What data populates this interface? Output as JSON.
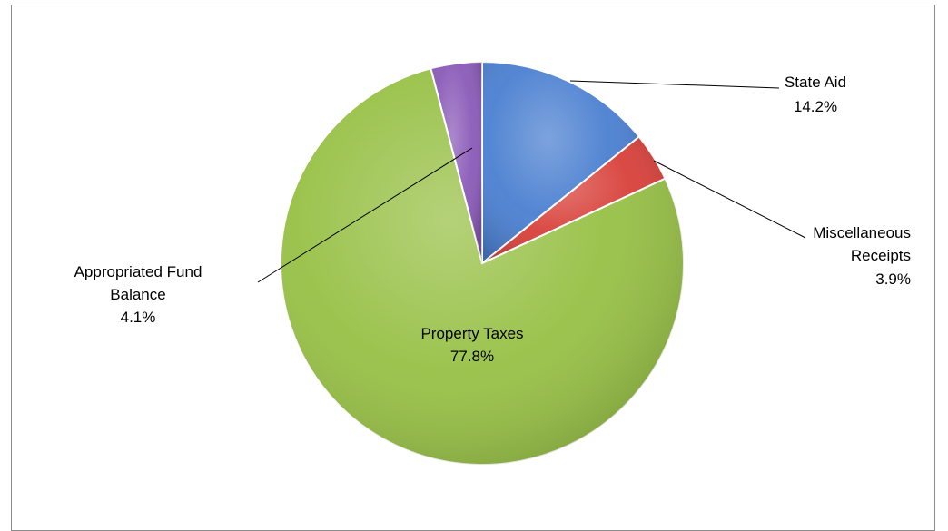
{
  "chart_data": {
    "type": "pie",
    "title": "",
    "slices": [
      {
        "name": "State Aid",
        "value": 14.2,
        "label": "14.2%",
        "color": "#4a7fd0"
      },
      {
        "name": "Miscellaneous Receipts",
        "value": 3.9,
        "label": "3.9%",
        "color": "#d8403a"
      },
      {
        "name": "Property Taxes",
        "value": 77.8,
        "label": "77.8%",
        "color": "#97c045"
      },
      {
        "name": "Appropriated Fund Balance",
        "value": 4.1,
        "label": "4.1%",
        "color": "#8a5ab8"
      }
    ],
    "start_angle_deg": 0,
    "direction": "clockwise",
    "legend": "none",
    "data_labels": "category name and percentage"
  }
}
